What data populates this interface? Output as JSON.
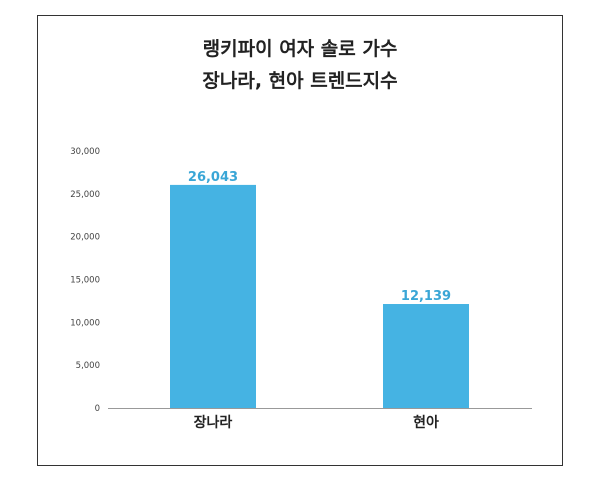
{
  "chart_data": {
    "type": "bar",
    "title_lines": [
      "랭키파이 여자 솔로 가수",
      "장나라, 현아 트렌드지수"
    ],
    "categories": [
      "장나라",
      "현아"
    ],
    "values": [
      26043,
      12139
    ],
    "value_labels": [
      "26,043",
      "12,139"
    ],
    "ylim": [
      0,
      30000
    ],
    "yticks": [
      0,
      5000,
      10000,
      15000,
      20000,
      25000,
      30000
    ],
    "ytick_labels": [
      "0",
      "5,000",
      "10,000",
      "15,000",
      "20,000",
      "25,000",
      "30,000"
    ],
    "grid": false,
    "bar_color": "#45b3e3",
    "value_label_color": "#3aa6d6"
  }
}
